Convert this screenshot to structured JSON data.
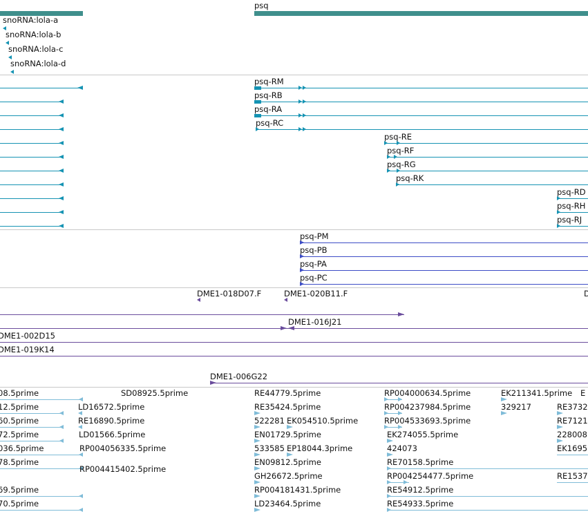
{
  "colors": {
    "gene": "#3f8f8c",
    "ncrna": "#1593b3",
    "transcript": "#1593b3",
    "protein": "#3c4cc6",
    "clone": "#6a4c9c",
    "est": "#7fbcd8",
    "separator": "#c8c8c8"
  },
  "genes": {
    "psq": "psq",
    "snorna": [
      "snoRNA:lola-a",
      "snoRNA:lola-b",
      "snoRNA:lola-c",
      "snoRNA:lola-d"
    ]
  },
  "transcripts": [
    "psq-RM",
    "psq-RB",
    "psq-RA",
    "psq-RC",
    "psq-RE",
    "psq-RF",
    "psq-RG",
    "psq-RK",
    "psq-RD",
    "psq-RH",
    "psq-RJ"
  ],
  "proteins": [
    "psq-PM",
    "psq-PB",
    "psq-PA",
    "psq-PC"
  ],
  "clones": {
    "d018d07": "DME1-018D07.F",
    "d020b11": "DME1-020B11.F",
    "d_edge": "D",
    "d016j21": "DME1-016J21",
    "d002d15": "DME1-002D15",
    "d019k14": "DME1-019K14",
    "d006g22": "DME1-006G22"
  },
  "ests": {
    "c0": [
      "08.5prime",
      "12.5prime",
      "60.5prime",
      "72.5prime",
      "036.5prime",
      "78.5prime",
      "69.5prime",
      "70.5prime"
    ],
    "c1": [
      "SD08925.5prime",
      "LD16572.5prime",
      "RE16890.5prime",
      "LD01566.5prime",
      "RP004056335.5prime",
      "RP004415402.5prime"
    ],
    "c2": [
      "RE44779.5prime",
      "RE35424.5prime",
      "522281",
      "EK054510.5prime",
      "EN01729.5prime",
      "533585",
      "EP18044.3prime",
      "EN09812.5prime",
      "GH26672.5prime",
      "RP004181431.5prime",
      "LD23464.5prime"
    ],
    "c3": [
      "RP004000634.5prime",
      "RP004237984.5prime",
      "RP004533693.5prime",
      "EK274055.5prime",
      "424073",
      "RE70158.5prime",
      "RP004254477.5prime",
      "RE54912.5prime",
      "RE54933.5prime"
    ],
    "c4": [
      "EK211341.5prime",
      "329217"
    ],
    "c5": [
      "E",
      "RE3732",
      "RE7121",
      "228008",
      "EK1695",
      "RE1537"
    ]
  }
}
